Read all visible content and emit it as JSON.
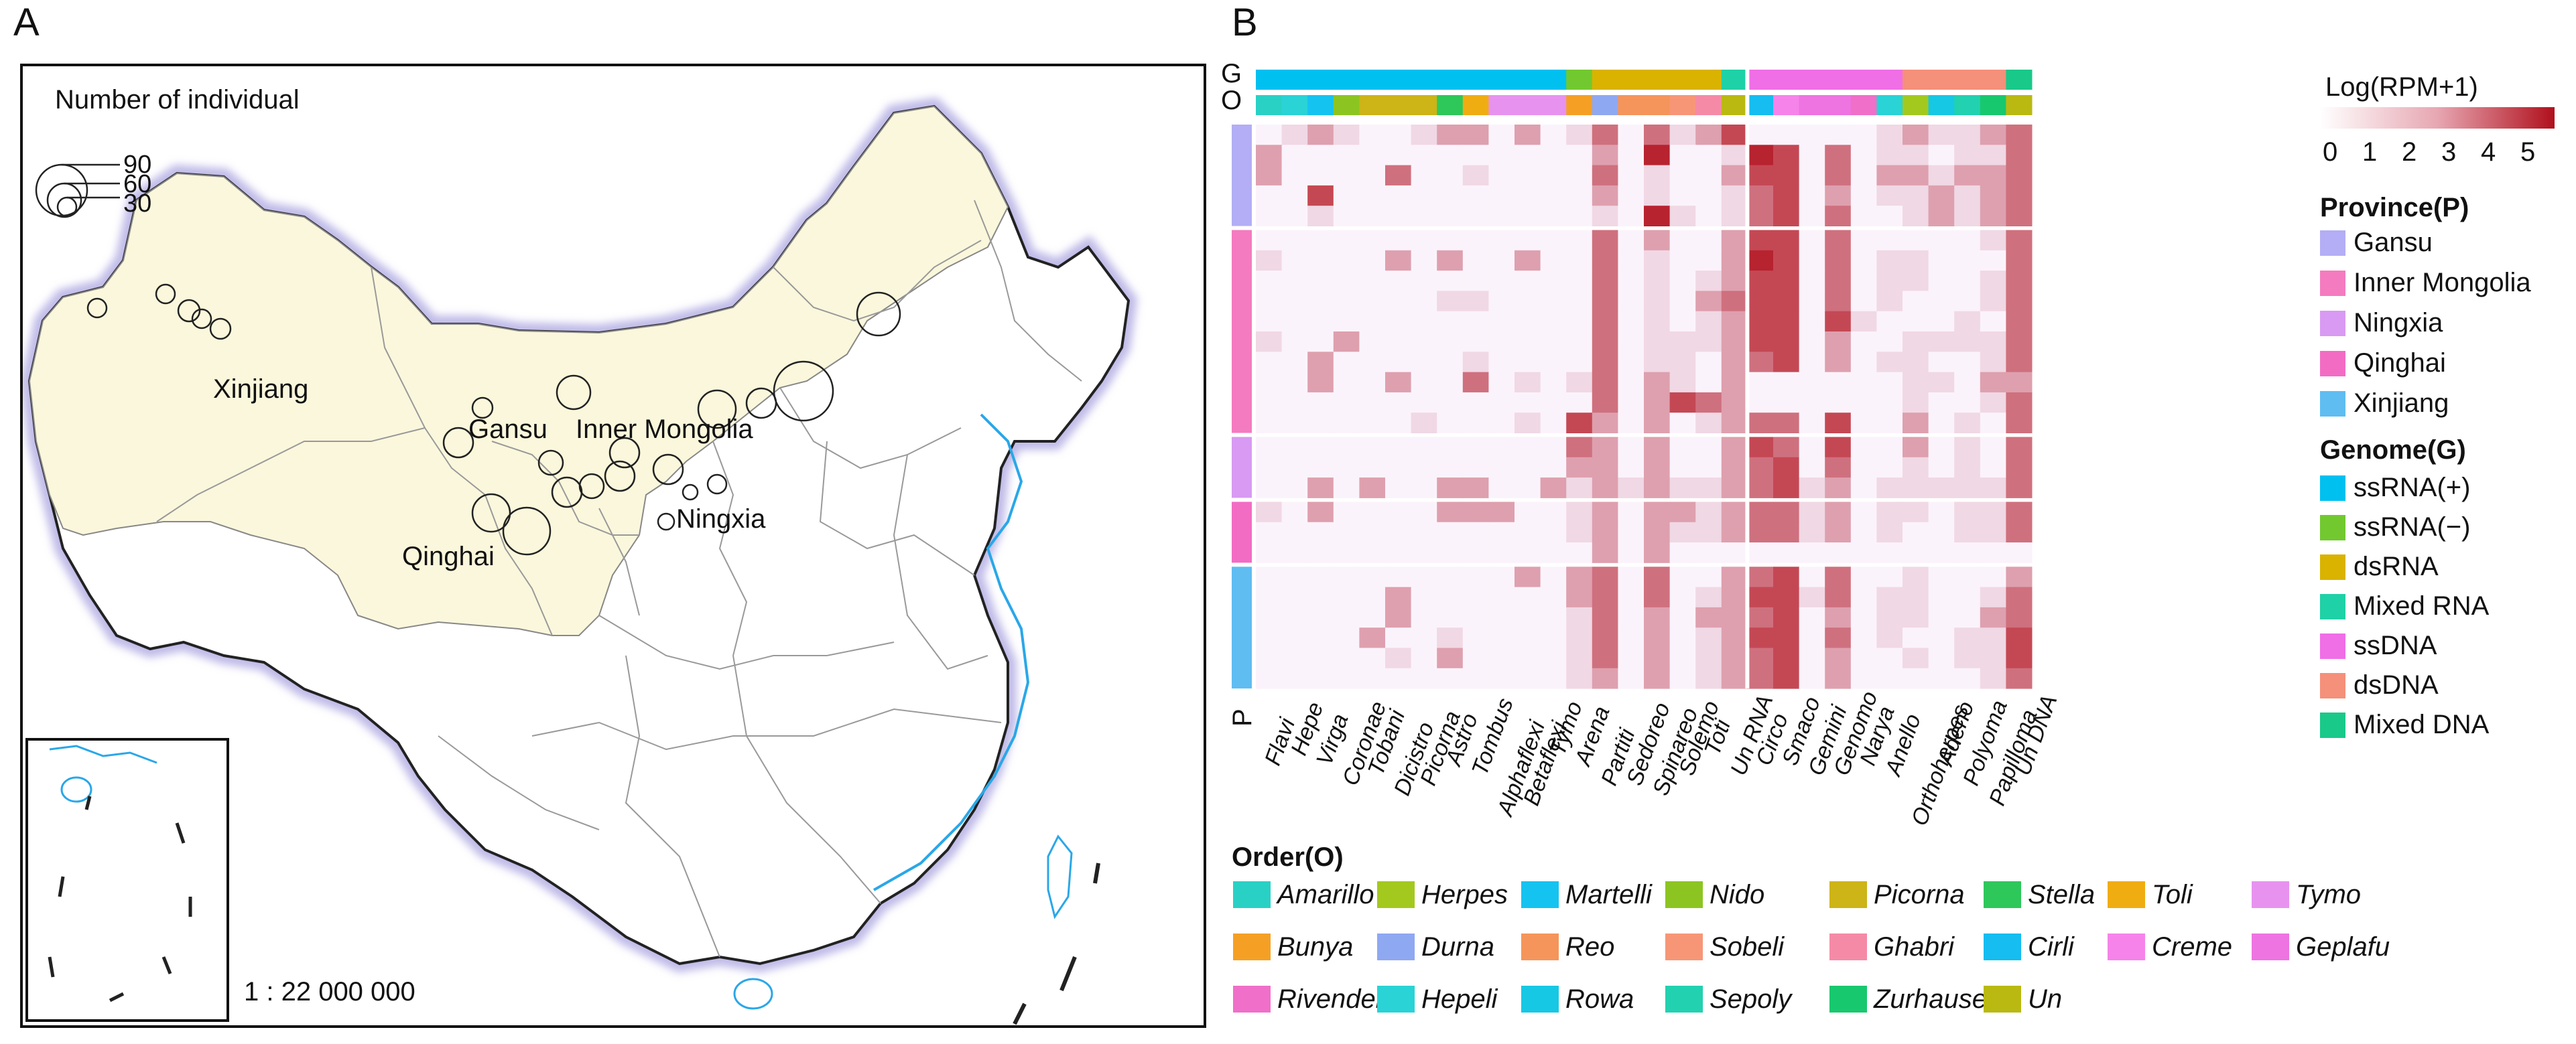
{
  "panel_labels": {
    "a": "A",
    "b": "B"
  },
  "map": {
    "legend_title": "Number of individual",
    "bubble_sizes": [
      "90",
      "60",
      "30"
    ],
    "scale": "1 :  22 000 000",
    "regions": [
      {
        "name": "Xinjiang"
      },
      {
        "name": "Gansu"
      },
      {
        "name": "Inner Mongolia"
      },
      {
        "name": "Ningxia"
      },
      {
        "name": "Qinghai"
      }
    ],
    "colors": {
      "region_fill": "#fbf7dc",
      "border_glow": "#b7b3e3",
      "coast": "#2aa7e8",
      "provinces": "#9a9a9a"
    }
  },
  "chart_data": {
    "type": "heatmap",
    "title": "",
    "colorbar": {
      "title": "Log(RPM+1)",
      "ticks": [
        "0",
        "1",
        "2",
        "3",
        "4",
        "5"
      ],
      "range": [
        0,
        5.5
      ],
      "colors": [
        "#fbf3fb",
        "#e8c3cc",
        "#cf7b86",
        "#b8202d"
      ]
    },
    "row_group_label": "P",
    "row_track_labels": {
      "genome": "G",
      "order": "O"
    },
    "columns": [
      "Flavi",
      "Hepe",
      "Virga",
      "Coronae",
      "Tobani",
      "Dicistro",
      "Picorna",
      "Astro",
      "Tombus",
      "Alphaflexi",
      "Betaflexi",
      "Tymo",
      "Arena",
      "Partiti",
      "Sedoreo",
      "Spinareo",
      "Solemo",
      "Toti",
      "Un RNA",
      "Circo",
      "Smaco",
      "Gemini",
      "Genomo",
      "Narya",
      "Anello",
      "Orthoherpes",
      "Adeno",
      "Polyoma",
      "Papilloma",
      "Un DNA"
    ],
    "column_genome": [
      "ssRNA(+)",
      "ssRNA(+)",
      "ssRNA(+)",
      "ssRNA(+)",
      "ssRNA(+)",
      "ssRNA(+)",
      "ssRNA(+)",
      "ssRNA(+)",
      "ssRNA(+)",
      "ssRNA(+)",
      "ssRNA(+)",
      "ssRNA(+)",
      "ssRNA(−)",
      "dsRNA",
      "dsRNA",
      "dsRNA",
      "dsRNA",
      "dsRNA",
      "Mixed RNA",
      "ssDNA",
      "ssDNA",
      "ssDNA",
      "ssDNA",
      "ssDNA",
      "ssDNA",
      "dsDNA",
      "dsDNA",
      "dsDNA",
      "dsDNA",
      "Mixed DNA"
    ],
    "column_order": [
      "Amarillo",
      "Hepeli",
      "Martelli",
      "Nido",
      "Picorna",
      "Picorna",
      "Picorna",
      "Stella",
      "Toli",
      "Tymo",
      "Tymo",
      "Tymo",
      "Bunya",
      "Durna",
      "Reo",
      "Reo",
      "Sobeli",
      "Ghabri",
      "Un",
      "Cirli",
      "Creme",
      "Geplafu",
      "Geplafu",
      "Rivendell",
      "Hepeli",
      "Herpes",
      "Rowa",
      "Sepoly",
      "Zurhausen",
      "Un"
    ],
    "row_groups": [
      {
        "province": "Gansu",
        "n": 5
      },
      {
        "province": "Inner Mongolia",
        "n": 10
      },
      {
        "province": "Ningxia",
        "n": 3
      },
      {
        "province": "Qinghai",
        "n": 3
      },
      {
        "province": "Xinjiang",
        "n": 6
      }
    ],
    "values": [
      [
        0,
        1,
        2,
        1,
        0,
        0,
        1,
        2,
        2,
        0,
        2,
        0,
        1,
        3,
        0,
        3,
        1,
        2,
        4,
        0,
        0,
        0,
        0,
        0,
        1,
        2,
        1,
        1,
        2,
        3
      ],
      [
        2,
        0,
        0,
        0,
        0,
        0,
        0,
        0,
        0,
        0,
        0,
        0,
        0,
        2,
        0,
        5,
        0,
        0,
        1,
        5,
        4,
        0,
        3,
        0,
        1,
        1,
        0,
        1,
        1,
        3
      ],
      [
        2,
        0,
        0,
        0,
        0,
        3,
        0,
        0,
        1,
        0,
        0,
        0,
        0,
        3,
        0,
        1,
        0,
        0,
        2,
        4,
        4,
        0,
        3,
        0,
        2,
        2,
        1,
        2,
        2,
        3
      ],
      [
        0,
        0,
        4,
        0,
        0,
        0,
        0,
        0,
        0,
        0,
        0,
        0,
        0,
        2,
        0,
        1,
        0,
        0,
        1,
        3,
        4,
        0,
        2,
        0,
        1,
        1,
        2,
        1,
        2,
        3
      ],
      [
        0,
        0,
        1,
        0,
        0,
        0,
        0,
        0,
        0,
        0,
        0,
        0,
        0,
        1,
        0,
        5,
        1,
        0,
        1,
        3,
        4,
        0,
        3,
        0,
        0,
        1,
        2,
        1,
        2,
        3
      ],
      [
        0,
        0,
        0,
        0,
        0,
        0,
        0,
        0,
        0,
        0,
        0,
        0,
        0,
        3,
        0,
        2,
        0,
        0,
        2,
        4,
        4,
        0,
        3,
        0,
        0,
        0,
        0,
        0,
        1,
        3
      ],
      [
        1,
        0,
        0,
        0,
        0,
        2,
        0,
        2,
        0,
        0,
        2,
        0,
        0,
        3,
        0,
        1,
        0,
        0,
        2,
        5,
        4,
        0,
        3,
        0,
        1,
        1,
        0,
        0,
        0,
        3
      ],
      [
        0,
        0,
        0,
        0,
        0,
        0,
        0,
        0,
        0,
        0,
        0,
        0,
        0,
        3,
        0,
        1,
        0,
        1,
        2,
        4,
        4,
        0,
        3,
        0,
        1,
        1,
        0,
        0,
        1,
        3
      ],
      [
        0,
        0,
        0,
        0,
        0,
        0,
        0,
        1,
        1,
        0,
        0,
        0,
        0,
        3,
        0,
        1,
        0,
        2,
        3,
        4,
        4,
        0,
        3,
        0,
        1,
        0,
        0,
        0,
        1,
        3
      ],
      [
        0,
        0,
        0,
        0,
        0,
        0,
        0,
        0,
        0,
        0,
        0,
        0,
        0,
        3,
        0,
        1,
        0,
        1,
        2,
        4,
        4,
        0,
        4,
        1,
        0,
        0,
        0,
        1,
        0,
        3
      ],
      [
        1,
        0,
        0,
        2,
        0,
        0,
        0,
        0,
        0,
        0,
        0,
        0,
        0,
        3,
        0,
        1,
        1,
        1,
        2,
        4,
        4,
        0,
        2,
        0,
        0,
        1,
        1,
        1,
        1,
        3
      ],
      [
        0,
        0,
        2,
        0,
        0,
        0,
        0,
        0,
        1,
        0,
        0,
        0,
        0,
        3,
        0,
        1,
        1,
        0,
        2,
        3,
        4,
        0,
        2,
        0,
        1,
        1,
        0,
        0,
        1,
        3
      ],
      [
        0,
        0,
        2,
        0,
        0,
        2,
        0,
        0,
        3,
        0,
        1,
        0,
        1,
        3,
        0,
        2,
        1,
        0,
        2,
        0,
        0,
        0,
        0,
        0,
        0,
        1,
        1,
        0,
        2,
        2
      ],
      [
        0,
        0,
        0,
        0,
        0,
        0,
        0,
        0,
        0,
        0,
        0,
        0,
        0,
        3,
        0,
        2,
        4,
        3,
        2,
        0,
        0,
        0,
        0,
        0,
        0,
        1,
        0,
        0,
        1,
        3
      ],
      [
        0,
        0,
        0,
        0,
        0,
        0,
        1,
        0,
        0,
        0,
        1,
        0,
        4,
        2,
        0,
        2,
        0,
        1,
        2,
        3,
        3,
        0,
        4,
        0,
        0,
        2,
        0,
        1,
        0,
        3
      ],
      [
        0,
        0,
        0,
        0,
        0,
        0,
        0,
        0,
        0,
        0,
        0,
        0,
        3,
        2,
        0,
        2,
        0,
        0,
        2,
        4,
        3,
        0,
        4,
        0,
        0,
        2,
        0,
        1,
        0,
        3
      ],
      [
        0,
        0,
        0,
        0,
        0,
        0,
        0,
        0,
        0,
        0,
        0,
        0,
        2,
        2,
        0,
        2,
        0,
        0,
        2,
        3,
        4,
        0,
        3,
        0,
        0,
        1,
        0,
        1,
        0,
        3
      ],
      [
        0,
        0,
        2,
        0,
        2,
        0,
        0,
        2,
        2,
        0,
        0,
        2,
        1,
        2,
        1,
        2,
        1,
        1,
        2,
        3,
        4,
        1,
        2,
        0,
        1,
        1,
        1,
        1,
        1,
        3
      ],
      [
        1,
        0,
        2,
        0,
        0,
        0,
        0,
        2,
        2,
        2,
        0,
        0,
        1,
        2,
        0,
        2,
        2,
        1,
        2,
        3,
        3,
        1,
        2,
        0,
        1,
        1,
        0,
        1,
        1,
        3
      ],
      [
        0,
        0,
        0,
        0,
        0,
        0,
        0,
        0,
        0,
        0,
        0,
        0,
        1,
        2,
        0,
        2,
        1,
        1,
        2,
        3,
        3,
        1,
        2,
        0,
        1,
        0,
        0,
        1,
        1,
        3
      ],
      [
        0,
        0,
        0,
        0,
        0,
        0,
        0,
        0,
        0,
        0,
        0,
        0,
        0,
        2,
        0,
        2,
        0,
        0,
        0,
        0,
        0,
        0,
        0,
        0,
        0,
        0,
        0,
        0,
        0,
        0
      ],
      [
        0,
        0,
        0,
        0,
        0,
        0,
        0,
        0,
        0,
        0,
        2,
        0,
        2,
        3,
        0,
        3,
        0,
        0,
        2,
        3,
        4,
        0,
        3,
        0,
        0,
        1,
        0,
        0,
        0,
        2
      ],
      [
        0,
        0,
        0,
        0,
        0,
        2,
        0,
        0,
        0,
        0,
        0,
        0,
        2,
        3,
        0,
        3,
        0,
        1,
        2,
        4,
        4,
        1,
        3,
        0,
        1,
        1,
        0,
        0,
        1,
        3
      ],
      [
        0,
        0,
        0,
        0,
        0,
        2,
        0,
        0,
        0,
        0,
        0,
        0,
        1,
        3,
        0,
        2,
        0,
        2,
        2,
        3,
        4,
        0,
        2,
        0,
        1,
        1,
        0,
        0,
        2,
        3
      ],
      [
        0,
        0,
        0,
        0,
        2,
        0,
        0,
        1,
        0,
        0,
        0,
        0,
        1,
        3,
        0,
        2,
        0,
        1,
        2,
        4,
        4,
        0,
        3,
        0,
        1,
        0,
        0,
        1,
        1,
        4
      ],
      [
        0,
        0,
        0,
        0,
        0,
        1,
        0,
        2,
        0,
        0,
        0,
        0,
        1,
        3,
        0,
        2,
        0,
        1,
        2,
        3,
        4,
        0,
        2,
        0,
        0,
        1,
        0,
        1,
        1,
        4
      ],
      [
        0,
        0,
        0,
        0,
        0,
        0,
        0,
        0,
        0,
        0,
        0,
        0,
        1,
        2,
        0,
        2,
        0,
        1,
        2,
        3,
        4,
        0,
        2,
        0,
        0,
        0,
        0,
        0,
        1,
        3
      ]
    ]
  },
  "legend": {
    "colorbar_title": "Log(RPM+1)",
    "province_title": "Province(P)",
    "provinces": [
      {
        "label": "Gansu",
        "color": "#b3aef5"
      },
      {
        "label": "Inner Mongolia",
        "color": "#f47bbf"
      },
      {
        "label": "Ningxia",
        "color": "#d89af2"
      },
      {
        "label": "Qinghai",
        "color": "#f26cc4"
      },
      {
        "label": "Xinjiang",
        "color": "#5fbdf2"
      }
    ],
    "genome_title": "Genome(G)",
    "genomes": [
      {
        "label": "ssRNA(+)",
        "color": "#00c0f0"
      },
      {
        "label": "ssRNA(−)",
        "color": "#72c92f"
      },
      {
        "label": "dsRNA",
        "color": "#d9b300"
      },
      {
        "label": "Mixed RNA",
        "color": "#1fd1a6"
      },
      {
        "label": "ssDNA",
        "color": "#f06ee6"
      },
      {
        "label": "dsDNA",
        "color": "#f5907a"
      },
      {
        "label": "Mixed DNA",
        "color": "#19c98a"
      }
    ],
    "order_title": "Order(O)",
    "orders": [
      {
        "label": "Amarillo",
        "color": "#29d1c5"
      },
      {
        "label": "Herpes",
        "color": "#a3c91f"
      },
      {
        "label": "Martelli",
        "color": "#15c3f0"
      },
      {
        "label": "Nido",
        "color": "#8cc521"
      },
      {
        "label": "Picorna",
        "color": "#cdb417"
      },
      {
        "label": "Stella",
        "color": "#2ec75a"
      },
      {
        "label": "Toli",
        "color": "#f0ad12"
      },
      {
        "label": "Tymo",
        "color": "#e892f0"
      },
      {
        "label": "Bunya",
        "color": "#f5a024"
      },
      {
        "label": "Durna",
        "color": "#8fa8f2"
      },
      {
        "label": "Reo",
        "color": "#f5955b"
      },
      {
        "label": "Sobeli",
        "color": "#f79677"
      },
      {
        "label": "Ghabri",
        "color": "#f58aa6"
      },
      {
        "label": "Cirli",
        "color": "#15bdf0"
      },
      {
        "label": "Creme",
        "color": "#f683ea"
      },
      {
        "label": "Geplafu",
        "color": "#ee74e1"
      },
      {
        "label": "Rivendell",
        "color": "#f06fc9"
      },
      {
        "label": "Hepeli",
        "color": "#29d3d6"
      },
      {
        "label": "Rowa",
        "color": "#16c8e3"
      },
      {
        "label": "Sepoly",
        "color": "#22d1b0"
      },
      {
        "label": "Zurhausen",
        "color": "#18c86e"
      },
      {
        "label": "Un",
        "color": "#b9b912"
      }
    ]
  }
}
